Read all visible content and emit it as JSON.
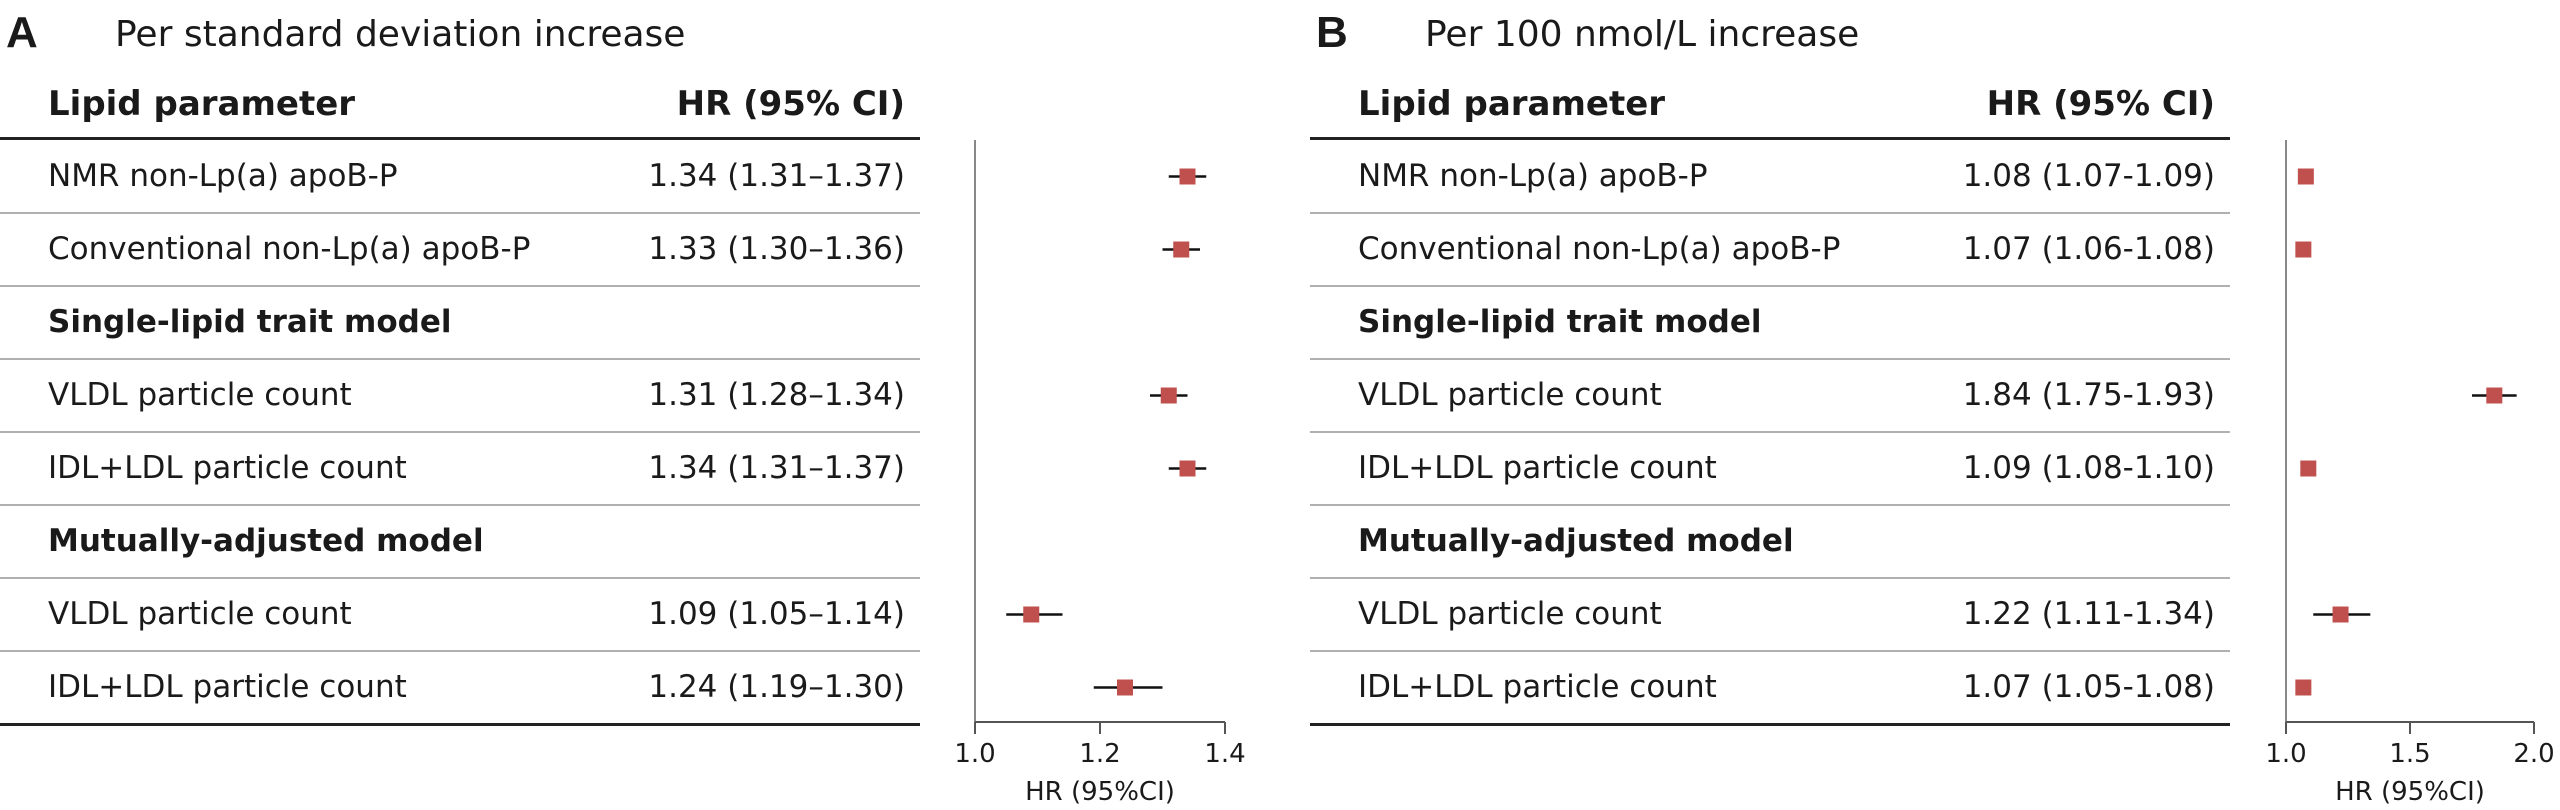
{
  "chart_data": [
    {
      "type": "forest",
      "panel": "A",
      "title": "Per standard deviation increase",
      "columns": {
        "parameter": "Lipid parameter",
        "hr": "HR (95% CI)"
      },
      "xlabel": "HR (95%CI)",
      "xlim": [
        1.0,
        1.4
      ],
      "xticks": [
        1.0,
        1.2,
        1.4
      ],
      "xtick_labels": [
        "1.0",
        "1.2",
        "1.4"
      ],
      "rows": [
        {
          "label": "NMR non-Lp(a) apoB-P",
          "hr_text": "1.34 (1.31–1.37)",
          "hr": 1.34,
          "lo": 1.31,
          "hi": 1.37
        },
        {
          "label": "Conventional non-Lp(a) apoB-P",
          "hr_text": "1.33 (1.30–1.36)",
          "hr": 1.33,
          "lo": 1.3,
          "hi": 1.36
        },
        {
          "label": "Single-lipid trait model",
          "header": true
        },
        {
          "label": "VLDL particle count",
          "hr_text": "1.31 (1.28–1.34)",
          "hr": 1.31,
          "lo": 1.28,
          "hi": 1.34
        },
        {
          "label": "IDL+LDL particle count",
          "hr_text": "1.34 (1.31–1.37)",
          "hr": 1.34,
          "lo": 1.31,
          "hi": 1.37
        },
        {
          "label": "Mutually-adjusted model",
          "header": true
        },
        {
          "label": "VLDL particle count",
          "hr_text": "1.09 (1.05–1.14)",
          "hr": 1.09,
          "lo": 1.05,
          "hi": 1.14
        },
        {
          "label": "IDL+LDL particle count",
          "hr_text": "1.24 (1.19–1.30)",
          "hr": 1.24,
          "lo": 1.19,
          "hi": 1.3
        }
      ]
    },
    {
      "type": "forest",
      "panel": "B",
      "title": "Per 100 nmol/L increase",
      "columns": {
        "parameter": "Lipid parameter",
        "hr": "HR (95% CI)"
      },
      "xlabel": "HR (95%CI)",
      "xlim": [
        1.0,
        2.0
      ],
      "xticks": [
        1.0,
        1.5,
        2.0
      ],
      "xtick_labels": [
        "1.0",
        "1.5",
        "2.0"
      ],
      "rows": [
        {
          "label": "NMR non-Lp(a) apoB-P",
          "hr_text": "1.08 (1.07-1.09)",
          "hr": 1.08,
          "lo": 1.07,
          "hi": 1.09
        },
        {
          "label": "Conventional non-Lp(a) apoB-P",
          "hr_text": "1.07 (1.06-1.08)",
          "hr": 1.07,
          "lo": 1.06,
          "hi": 1.08
        },
        {
          "label": "Single-lipid trait model",
          "header": true
        },
        {
          "label": "VLDL particle count",
          "hr_text": "1.84 (1.75-1.93)",
          "hr": 1.84,
          "lo": 1.75,
          "hi": 1.93
        },
        {
          "label": "IDL+LDL particle count",
          "hr_text": "1.09 (1.08-1.10)",
          "hr": 1.09,
          "lo": 1.08,
          "hi": 1.1
        },
        {
          "label": "Mutually-adjusted model",
          "header": true
        },
        {
          "label": "VLDL particle count",
          "hr_text": "1.22 (1.11-1.34)",
          "hr": 1.22,
          "lo": 1.11,
          "hi": 1.34
        },
        {
          "label": "IDL+LDL particle count",
          "hr_text": "1.07 (1.05-1.08)",
          "hr": 1.07,
          "lo": 1.05,
          "hi": 1.08
        }
      ]
    }
  ],
  "colors": {
    "marker": "#c0504d",
    "rule": "#b0b0b0",
    "axis": "#555555"
  }
}
